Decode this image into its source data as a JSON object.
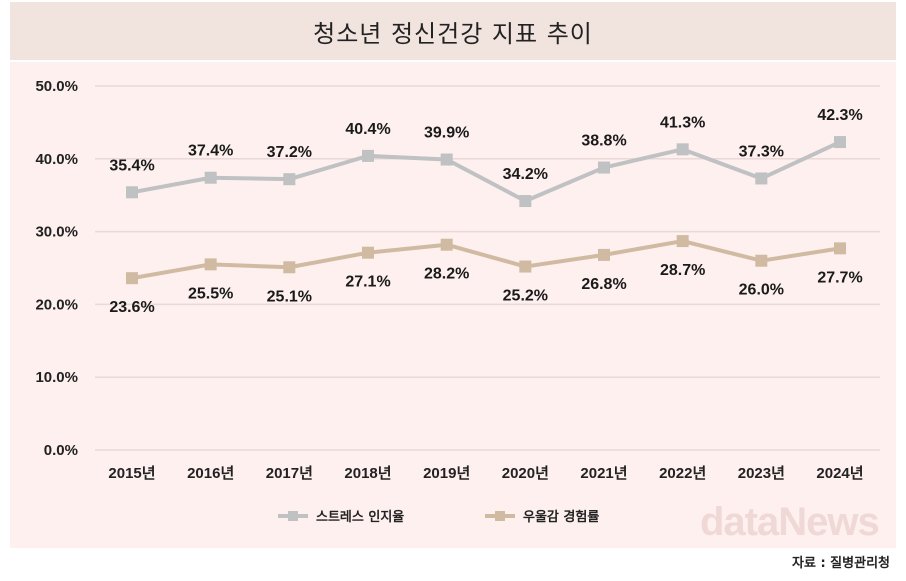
{
  "chart_data": {
    "type": "line",
    "title": "청소년 정신건강 지표 추이",
    "categories": [
      "2015년",
      "2016년",
      "2017년",
      "2018년",
      "2019년",
      "2020년",
      "2021년",
      "2022년",
      "2023년",
      "2024년"
    ],
    "ylim": [
      0,
      50
    ],
    "yticks": [
      0,
      10,
      20,
      30,
      40,
      50
    ],
    "ytick_labels": [
      "0.0%",
      "10.0%",
      "20.0%",
      "30.0%",
      "40.0%",
      "50.0%"
    ],
    "grid": true,
    "legend_position": "bottom",
    "series": [
      {
        "name": "스트레스 인지율",
        "color": "#bfc1c2",
        "label_position": "above",
        "values": [
          35.4,
          37.4,
          37.2,
          40.4,
          39.9,
          34.2,
          38.8,
          41.3,
          37.3,
          42.3
        ],
        "labels": [
          "35.4%",
          "37.4%",
          "37.2%",
          "40.4%",
          "39.9%",
          "34.2%",
          "38.8%",
          "41.3%",
          "37.3%",
          "42.3%"
        ]
      },
      {
        "name": "우울감 경험률",
        "color": "#d0bba2",
        "label_position": "below",
        "values": [
          23.6,
          25.5,
          25.1,
          27.1,
          28.2,
          25.2,
          26.8,
          28.7,
          26.0,
          27.7
        ],
        "labels": [
          "23.6%",
          "25.5%",
          "25.1%",
          "27.1%",
          "28.2%",
          "25.2%",
          "26.8%",
          "28.7%",
          "26.0%",
          "27.7%"
        ]
      }
    ]
  },
  "source": "자료 : 질병관리청",
  "watermark": "dataNews"
}
